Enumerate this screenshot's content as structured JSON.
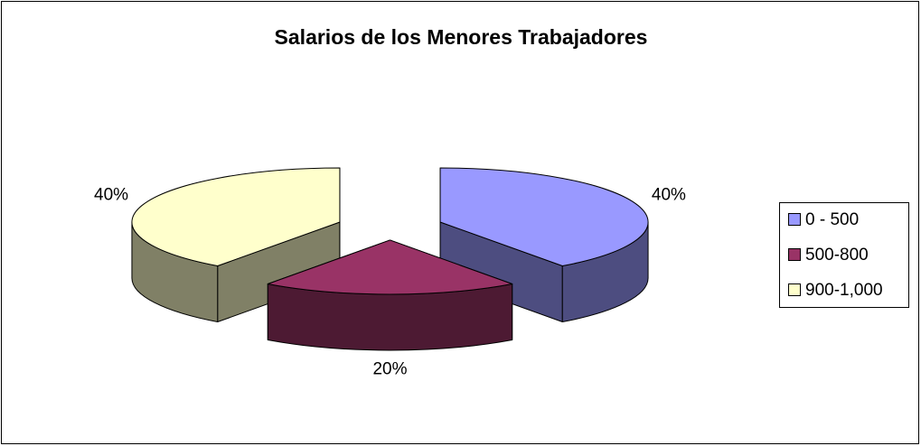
{
  "chart_data": {
    "type": "pie3d",
    "title": "Salarios de los Menores Trabajadores",
    "categories": [
      "0 - 500",
      "500-800",
      "900-1,000"
    ],
    "values": [
      40,
      20,
      40
    ],
    "value_labels": [
      "40%",
      "20%",
      "40%"
    ],
    "colors": [
      "#9999ff",
      "#993366",
      "#ffffcc"
    ],
    "legend": "right"
  }
}
